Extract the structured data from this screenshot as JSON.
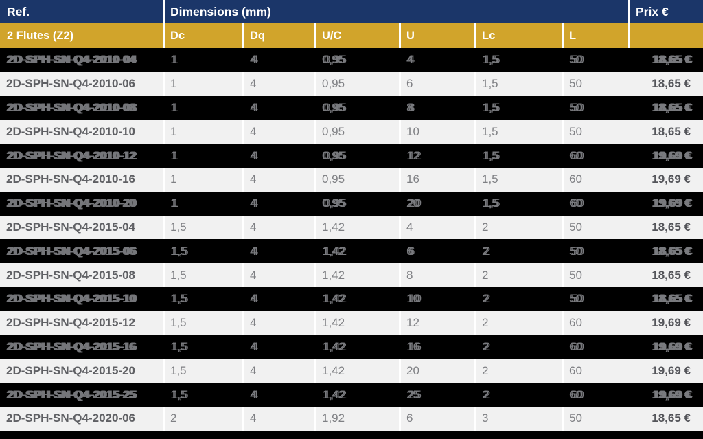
{
  "colors": {
    "header_blue": "#1b3669",
    "header_gold": "#d1a42b",
    "row_dark": "#000000",
    "row_light": "#f1f1f1"
  },
  "table": {
    "header": {
      "ref": "Ref.",
      "dimensions": "Dimensions (mm)",
      "prix": "Prix €"
    },
    "subheader": {
      "series": "2 Flutes (Z2)",
      "cols": [
        "Dc",
        "Dq",
        "U/C",
        "U",
        "Lc",
        "L"
      ]
    },
    "rows": [
      {
        "ref": "2D-SPH-SN-Q4-2010-04",
        "values": [
          "1",
          "4",
          "0,95",
          "4",
          "1,5",
          "50"
        ],
        "price": "18,65 €",
        "variant": "dark"
      },
      {
        "ref": "2D-SPH-SN-Q4-2010-06",
        "values": [
          "1",
          "4",
          "0,95",
          "6",
          "1,5",
          "50"
        ],
        "price": "18,65 €",
        "variant": "light"
      },
      {
        "ref": "2D-SPH-SN-Q4-2010-08",
        "values": [
          "1",
          "4",
          "0,95",
          "8",
          "1,5",
          "50"
        ],
        "price": "18,65 €",
        "variant": "dark"
      },
      {
        "ref": "2D-SPH-SN-Q4-2010-10",
        "values": [
          "1",
          "4",
          "0,95",
          "10",
          "1,5",
          "50"
        ],
        "price": "18,65 €",
        "variant": "light"
      },
      {
        "ref": "2D-SPH-SN-Q4-2010-12",
        "values": [
          "1",
          "4",
          "0,95",
          "12",
          "1,5",
          "60"
        ],
        "price": "19,69 €",
        "variant": "dark"
      },
      {
        "ref": "2D-SPH-SN-Q4-2010-16",
        "values": [
          "1",
          "4",
          "0,95",
          "16",
          "1,5",
          "60"
        ],
        "price": "19,69 €",
        "variant": "light"
      },
      {
        "ref": "2D-SPH-SN-Q4-2010-20",
        "values": [
          "1",
          "4",
          "0,95",
          "20",
          "1,5",
          "60"
        ],
        "price": "19,69 €",
        "variant": "dark"
      },
      {
        "ref": "2D-SPH-SN-Q4-2015-04",
        "values": [
          "1,5",
          "4",
          "1,42",
          "4",
          "2",
          "50"
        ],
        "price": "18,65 €",
        "variant": "light"
      },
      {
        "ref": "2D-SPH-SN-Q4-2015-06",
        "values": [
          "1,5",
          "4",
          "1,42",
          "6",
          "2",
          "50"
        ],
        "price": "18,65 €",
        "variant": "dark"
      },
      {
        "ref": "2D-SPH-SN-Q4-2015-08",
        "values": [
          "1,5",
          "4",
          "1,42",
          "8",
          "2",
          "50"
        ],
        "price": "18,65 €",
        "variant": "light"
      },
      {
        "ref": "2D-SPH-SN-Q4-2015-10",
        "values": [
          "1,5",
          "4",
          "1,42",
          "10",
          "2",
          "50"
        ],
        "price": "18,65 €",
        "variant": "dark"
      },
      {
        "ref": "2D-SPH-SN-Q4-2015-12",
        "values": [
          "1,5",
          "4",
          "1,42",
          "12",
          "2",
          "60"
        ],
        "price": "19,69 €",
        "variant": "light"
      },
      {
        "ref": "2D-SPH-SN-Q4-2015-16",
        "values": [
          "1,5",
          "4",
          "1,42",
          "16",
          "2",
          "60"
        ],
        "price": "19,69 €",
        "variant": "dark"
      },
      {
        "ref": "2D-SPH-SN-Q4-2015-20",
        "values": [
          "1,5",
          "4",
          "1,42",
          "20",
          "2",
          "60"
        ],
        "price": "19,69 €",
        "variant": "light"
      },
      {
        "ref": "2D-SPH-SN-Q4-2015-25",
        "values": [
          "1,5",
          "4",
          "1,42",
          "25",
          "2",
          "60"
        ],
        "price": "19,69 €",
        "variant": "dark"
      },
      {
        "ref": "2D-SPH-SN-Q4-2020-06",
        "values": [
          "2",
          "4",
          "1,92",
          "6",
          "3",
          "50"
        ],
        "price": "18,65 €",
        "variant": "light"
      }
    ]
  }
}
